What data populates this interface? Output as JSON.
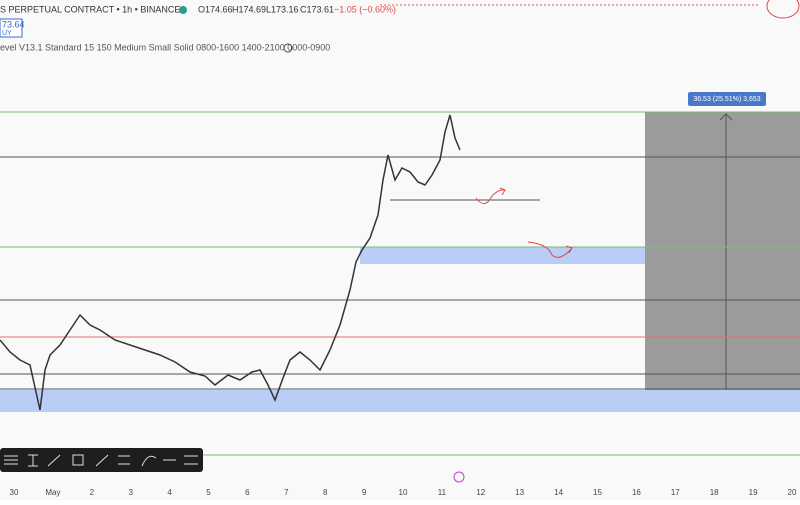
{
  "header": {
    "symbol": "S PERPETUAL CONTRACT • 1h • BINANCE",
    "open": "O174.66",
    "high": "H174.69",
    "low": "L173.16",
    "close": "C173.61",
    "change": "−1.05 (−0.60%)"
  },
  "price_box": {
    "price": "73.64",
    "side": "UY"
  },
  "indicator": "evel V13.1 Standard 15 150 Medium Small Solid 0800-1600 1400-2100 0000-0900",
  "measure": "36.53 (25.51%) 3,653",
  "time_axis": [
    "30",
    "May",
    "2",
    "3",
    "4",
    "5",
    "6",
    "7",
    "8",
    "9",
    "10",
    "11",
    "12",
    "13",
    "14",
    "15",
    "16",
    "17",
    "18",
    "19",
    "20"
  ]
}
